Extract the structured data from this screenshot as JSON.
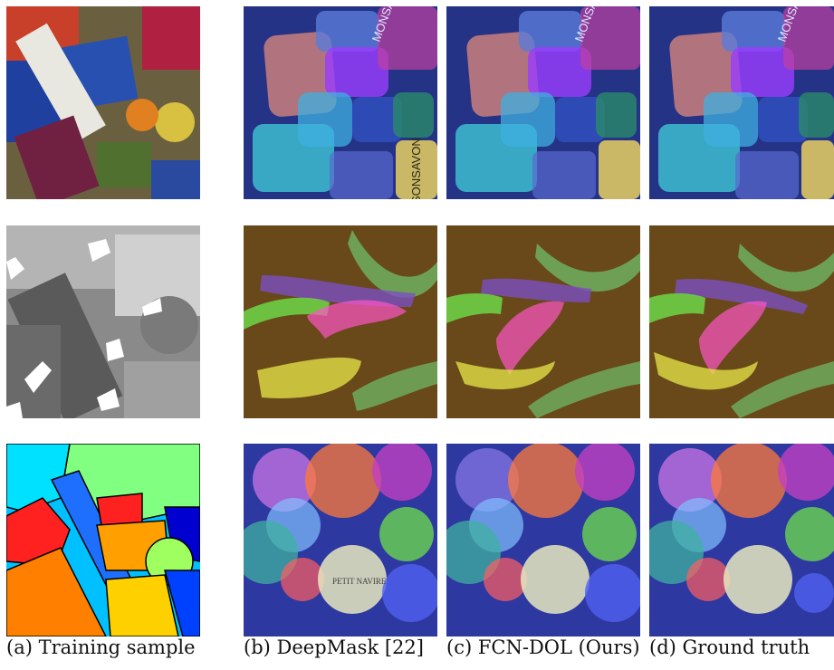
{
  "captions": {
    "a": "(a) Training sample",
    "b": "(b) DeepMask [22]",
    "c_prefix": "(c) ",
    "c_method": "FCN-DOL",
    "c_suffix": " (Ours)",
    "d": "(d) Ground truth"
  },
  "rows": [
    {
      "scene": "packaged-food-pile",
      "visible_text": [
        "MONSAVON",
        "MONSAVON",
        "MONSAVON",
        "SONSAVON"
      ]
    },
    {
      "scene": "banana-pile"
    },
    {
      "scene": "tin-can-pile",
      "visible_text": [
        "PETIT NAVIRE"
      ]
    }
  ],
  "colors": {
    "background": "#ffffff",
    "caption_text": "#111111",
    "mask_cyan": "#3fd0d8",
    "mask_purple": "#9b3cff",
    "mask_pink": "#ff55c8",
    "mask_green": "#6ee04a",
    "mask_yellow": "#e8e84a",
    "mask_orange": "#ff7a3a",
    "mask_blue": "#3f5fe0"
  }
}
